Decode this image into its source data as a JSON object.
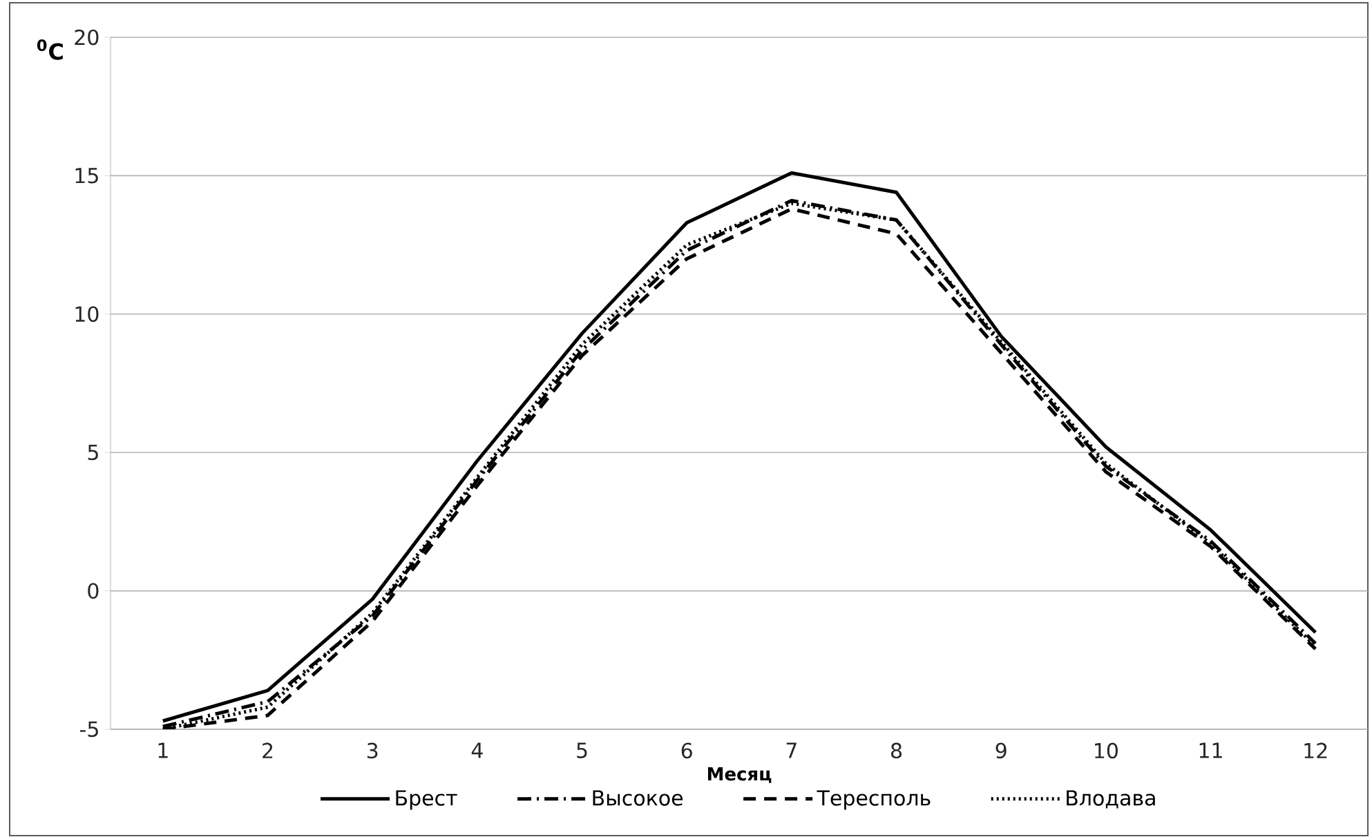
{
  "chart_data": {
    "type": "line",
    "xlabel": "Месяц",
    "ylabel": "$^{0}$C",
    "categories": [
      "1",
      "2",
      "3",
      "4",
      "5",
      "6",
      "7",
      "8",
      "9",
      "10",
      "11",
      "12"
    ],
    "series": [
      {
        "name": "Брест",
        "color": "#000000",
        "line_style": "solid",
        "values": [
          -4.7,
          -3.6,
          -0.3,
          4.7,
          9.3,
          13.3,
          15.1,
          14.4,
          9.2,
          5.2,
          2.2,
          -1.5
        ]
      },
      {
        "name": "Высокое",
        "color": "#000000",
        "line_style": "dashdot",
        "values": [
          -4.9,
          -4.0,
          -0.9,
          4.0,
          8.7,
          12.3,
          14.1,
          13.4,
          8.9,
          4.5,
          1.8,
          -1.9
        ]
      },
      {
        "name": "Тересполь",
        "color": "#000000",
        "line_style": "dashed",
        "values": [
          -5.0,
          -4.5,
          -1.1,
          3.8,
          8.5,
          12.0,
          13.8,
          12.9,
          8.6,
          4.3,
          1.6,
          -2.1
        ]
      },
      {
        "name": "Влодава",
        "color": "#000000",
        "line_style": "dotted",
        "values": [
          -5.0,
          -4.2,
          -0.8,
          4.1,
          8.9,
          12.5,
          14.0,
          13.4,
          9.0,
          4.6,
          1.7,
          -2.0
        ]
      }
    ],
    "ylim": [
      -5,
      20
    ],
    "yticks": [
      -5,
      0,
      5,
      10,
      15,
      20
    ],
    "grid": "y",
    "legend": "bottom",
    "marker": "none"
  }
}
